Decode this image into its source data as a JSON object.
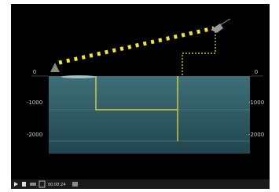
{
  "depth_labels_left": [
    "0",
    "-1000",
    "-2000"
  ],
  "depth_labels_right": [
    "0",
    "-1000",
    "-2000"
  ],
  "player": {
    "time": "00:00:24"
  }
}
